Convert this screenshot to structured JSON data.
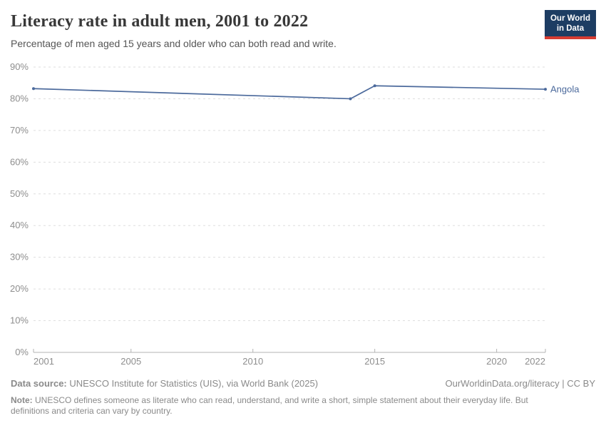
{
  "header": {
    "title": "Literacy rate in adult men, 2001 to 2022",
    "subtitle": "Percentage of men aged 15 years and older who can both read and write.",
    "logo": {
      "line1": "Our World",
      "line2": "in Data"
    }
  },
  "chart_data": {
    "type": "line",
    "title": "Literacy rate in adult men, 2001 to 2022",
    "subtitle": "Percentage of men aged 15 years and older who can both read and write.",
    "series": [
      {
        "name": "Angola",
        "color": "#4C6A9C",
        "points": [
          [
            2001,
            83.2
          ],
          [
            2014,
            80.0
          ],
          [
            2015,
            84.1
          ],
          [
            2022,
            83.0
          ]
        ]
      }
    ],
    "xlim": [
      2001,
      2022
    ],
    "ylim": [
      0,
      90
    ],
    "x_ticks": [
      2001,
      2005,
      2010,
      2015,
      2020,
      2022
    ],
    "y_ticks": [
      0,
      10,
      20,
      30,
      40,
      50,
      60,
      70,
      80,
      90
    ],
    "y_tick_format": "{v}%",
    "grid": "horizontal-dashed",
    "legend": "line-end-label"
  },
  "footer": {
    "data_source_label": "Data source:",
    "data_source_value": " UNESCO Institute for Statistics (UIS), via World Bank (2025)",
    "attribution": "OurWorldinData.org/literacy | CC BY",
    "note_label": "Note:",
    "note_value": " UNESCO defines someone as literate who can read, understand, and write a short, simple statement about their everyday life. But definitions and criteria can vary by country."
  },
  "colors": {
    "line": "#4C6A9C",
    "gridline": "#dedede",
    "axis": "#b3b3b3",
    "tick_label": "#8e8e8e",
    "title": "#383838",
    "subtitle": "#555555",
    "footer_text": "#8a8a8a",
    "logo_bg": "#1d3d63",
    "logo_accent": "#d63c32"
  }
}
